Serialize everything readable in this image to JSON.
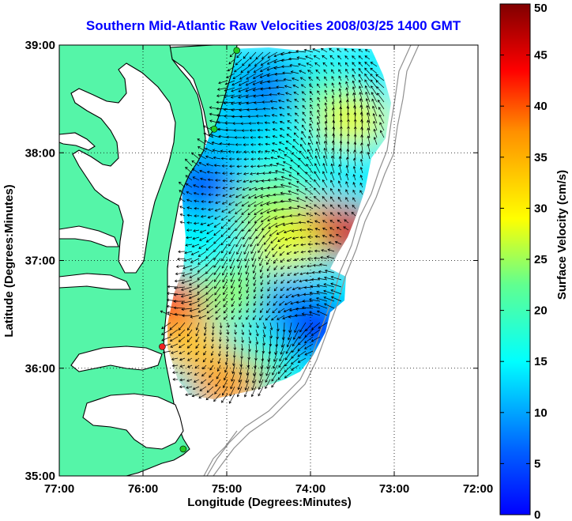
{
  "title": "Southern Mid-Atlantic Raw Velocities 2008/03/25 1400 GMT",
  "x_axis": {
    "label": "Longitude (Degrees:Minutes)",
    "ticks": [
      "77:00",
      "76:00",
      "75:00",
      "74:00",
      "73:00",
      "72:00"
    ]
  },
  "y_axis": {
    "label": "Latitude (Degrees:Minutes)",
    "ticks": [
      "39:00",
      "38:00",
      "37:00",
      "36:00",
      "35:00"
    ]
  },
  "colorbar": {
    "label": "Surface Velocity (cm/s)",
    "ticks": [
      "50",
      "45",
      "40",
      "35",
      "30",
      "25",
      "20",
      "15",
      "10",
      "5",
      "0"
    ],
    "range": [
      0,
      50
    ],
    "colormap": "jet"
  },
  "colors": {
    "land": "#55f5a8",
    "water": "#ffffff",
    "coast": "#000000",
    "bathymetry": "#909090",
    "arrow": "#000000",
    "site_green": "#22cc22",
    "site_red": "#ee2222"
  },
  "map": {
    "lon_range": [
      -77,
      -72
    ],
    "lat_range": [
      35,
      39
    ],
    "grid": "dotted",
    "velocity_regions": [
      {
        "lon": -74.5,
        "lat": 38.6,
        "speed": 12
      },
      {
        "lon": -73.8,
        "lat": 38.5,
        "speed": 22
      },
      {
        "lon": -73.5,
        "lat": 38.3,
        "speed": 30
      },
      {
        "lon": -75.0,
        "lat": 38.2,
        "speed": 16
      },
      {
        "lon": -74.2,
        "lat": 37.9,
        "speed": 20
      },
      {
        "lon": -75.3,
        "lat": 37.7,
        "speed": 10
      },
      {
        "lon": -74.5,
        "lat": 37.5,
        "speed": 26
      },
      {
        "lon": -73.8,
        "lat": 37.3,
        "speed": 38
      },
      {
        "lon": -73.5,
        "lat": 37.25,
        "speed": 46
      },
      {
        "lon": -74.3,
        "lat": 37.15,
        "speed": 30
      },
      {
        "lon": -75.3,
        "lat": 37.0,
        "speed": 19
      },
      {
        "lon": -74.9,
        "lat": 36.7,
        "speed": 26
      },
      {
        "lon": -74.2,
        "lat": 36.6,
        "speed": 14
      },
      {
        "lon": -73.9,
        "lat": 36.35,
        "speed": 7
      },
      {
        "lon": -75.7,
        "lat": 36.6,
        "speed": 40
      },
      {
        "lon": -75.4,
        "lat": 36.2,
        "speed": 34
      },
      {
        "lon": -74.7,
        "lat": 36.0,
        "speed": 22
      },
      {
        "lon": -75.0,
        "lat": 35.85,
        "speed": 36
      }
    ],
    "sites": [
      {
        "lon": -74.88,
        "lat": 38.95,
        "color": "green"
      },
      {
        "lon": -75.15,
        "lat": 38.22,
        "color": "green"
      },
      {
        "lon": -75.77,
        "lat": 36.2,
        "color": "red"
      },
      {
        "lon": -75.52,
        "lat": 35.25,
        "color": "green"
      }
    ]
  }
}
